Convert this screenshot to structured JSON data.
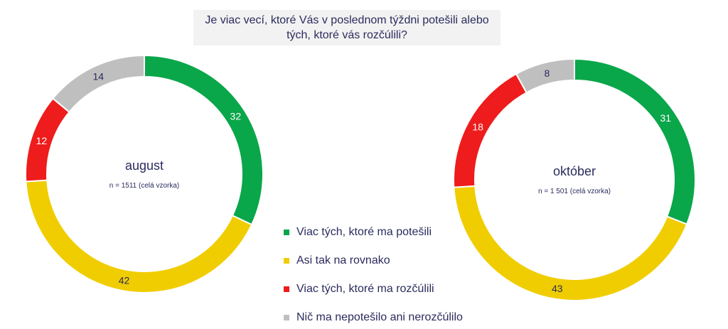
{
  "title": "Je viac vecí, ktoré Vás v poslednom týždni potešili alebo týžch, ktoré vás rozčúlili?",
  "legend": [
    {
      "name": "Viac tých, ktoré ma potešili",
      "color": "#0aa64a"
    },
    {
      "name": "Asi tak na rovnako",
      "color": "#f0cd00"
    },
    {
      "name": "Viac tých, ktoré ma rozčúlili",
      "color": "#ee1c1c"
    },
    {
      "name": "Nič ma nepotešilo ani nerozčúlilo",
      "color": "#bfbfbf"
    }
  ],
  "chart_data": [
    {
      "type": "pie",
      "label": "august",
      "sublabel": "n = 1511 (celá vzorka)",
      "categories": [
        "Viac tých, ktoré ma potešili",
        "Asi tak na rovnako",
        "Viac tých, ktoré ma rozčúlili",
        "Nič ma nepotešilo ani nerozčúlilo"
      ],
      "values": [
        32,
        42,
        12,
        14
      ],
      "colors": [
        "#0aa64a",
        "#f0cd00",
        "#ee1c1c",
        "#bfbfbf"
      ]
    },
    {
      "type": "pie",
      "label": "október",
      "sublabel": "n = 1 501 (celá vzorka)",
      "categories": [
        "Viac tých, ktoré ma potešili",
        "Asi tak na rovnako",
        "Viac tých, ktoré ma rozčúlili",
        "Nič ma nepotešilo ani nerozčúlilo"
      ],
      "values": [
        31,
        43,
        18,
        8
      ],
      "colors": [
        "#0aa64a",
        "#f0cd00",
        "#ee1c1c",
        "#bfbfbf"
      ]
    }
  ]
}
